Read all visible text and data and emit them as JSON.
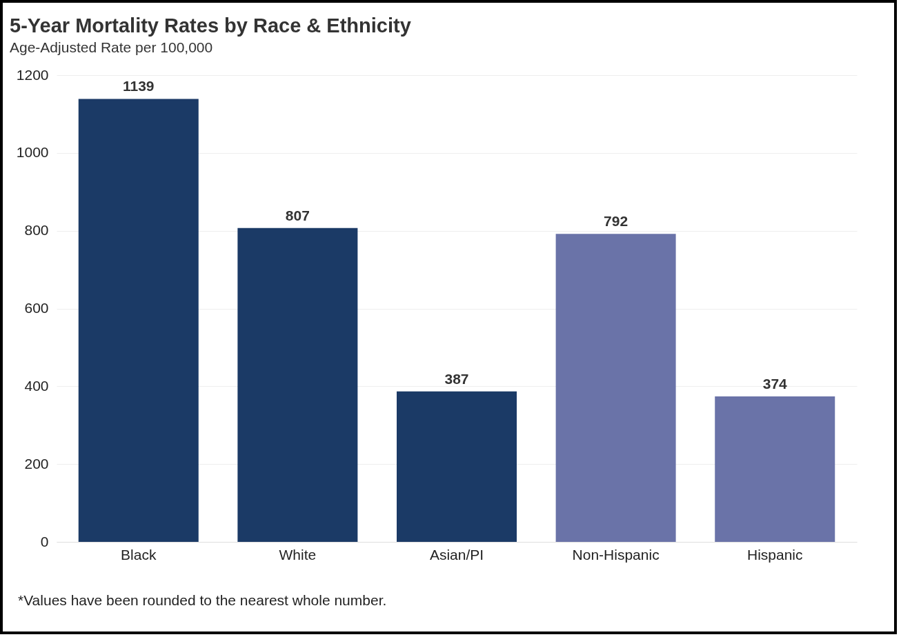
{
  "chart_data": {
    "type": "bar",
    "title": "5-Year Mortality Rates by Race & Ethnicity",
    "subtitle": "Age-Adjusted Rate per 100,000",
    "categories": [
      "Black",
      "White",
      "Asian/PI",
      "Non-Hispanic",
      "Hispanic"
    ],
    "values": [
      1139,
      807,
      387,
      792,
      374
    ],
    "colors": [
      "#1b3a66",
      "#1b3a66",
      "#1b3a66",
      "#6a73a8",
      "#6a73a8"
    ],
    "ylim": [
      0,
      1200
    ],
    "yticks": [
      0,
      200,
      400,
      600,
      800,
      1000,
      1200
    ],
    "grid": "y",
    "data_labels": true,
    "annotations": [
      "*Values have been rounded to the nearest whole number."
    ]
  }
}
